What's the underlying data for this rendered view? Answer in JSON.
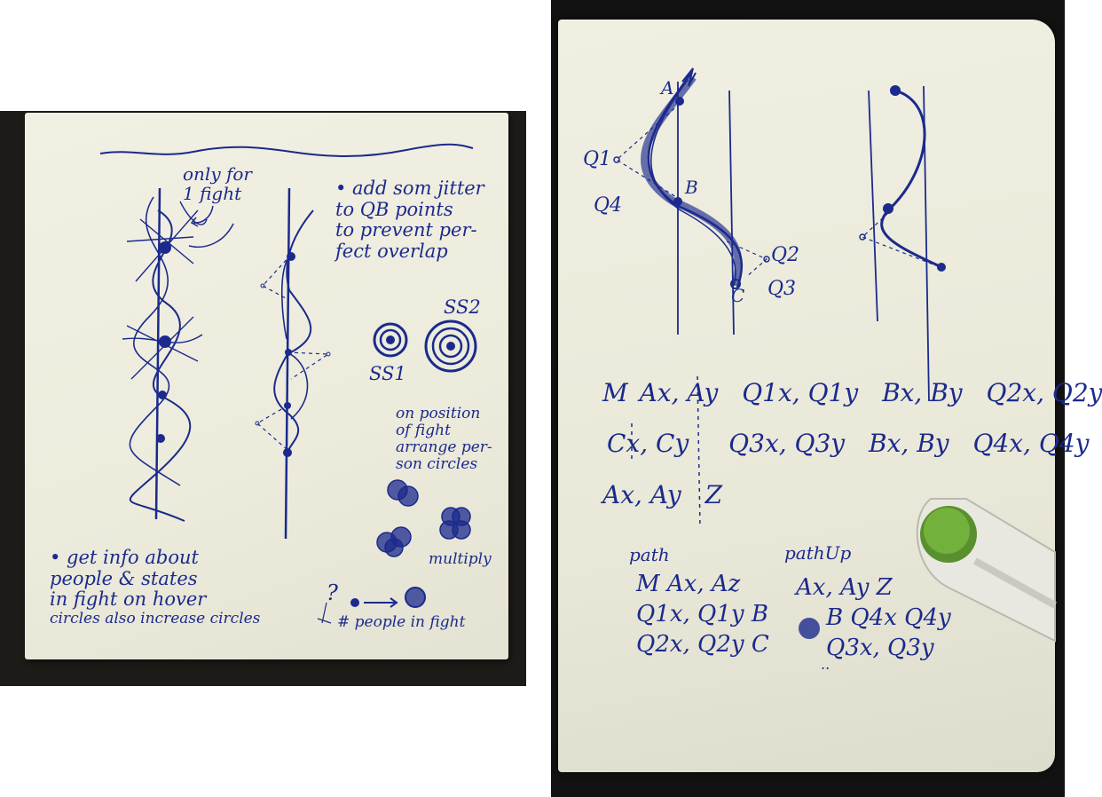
{
  "left_note": {
    "only_for_1_fight": [
      "only for",
      "1 fight"
    ],
    "jitter_note": [
      "• add som jitter",
      "to QB points",
      "to prevent per-",
      "fect overlap"
    ],
    "ss2_label": "SS2",
    "ss1_label": "SS1",
    "position_note": [
      "on position",
      "of fight",
      "arrange per-",
      "son circles"
    ],
    "multiply_label": "multiply",
    "hover_note": [
      "• get info about",
      "people & states",
      "in fight on hover",
      "circles also increase circles"
    ],
    "question_mark": "?",
    "people_in_fight": "# people in fight"
  },
  "right_note": {
    "point_labels": {
      "a": "A",
      "b": "B",
      "c": "C",
      "q1": "Q1",
      "q2": "Q2",
      "q3": "Q3",
      "q4": "Q4"
    },
    "path_rows": [
      [
        "M",
        "Ax, Ay",
        "Q1x, Q1y",
        "Bx, By",
        "Q2x, Q2y"
      ],
      [
        "Cx, Cy",
        "Q3x, Q3y",
        "Bx, By",
        "Q4x, Q4y"
      ],
      [
        "Ax, Ay",
        "Z"
      ]
    ],
    "path_label": "path",
    "path_lines": [
      "M Ax, Az",
      "Q1x, Q1y B",
      "Q2x, Q2y C"
    ],
    "path_up_label": "pathUp",
    "path_up_lines": [
      "Ax, Ay Z",
      "B Q4x Q4y",
      "Q3x, Q3y"
    ]
  },
  "colors": {
    "ink": "#1b2a8c",
    "paper": "#efeee0",
    "background": "#1e1a17",
    "clip": "#6aa33a"
  }
}
